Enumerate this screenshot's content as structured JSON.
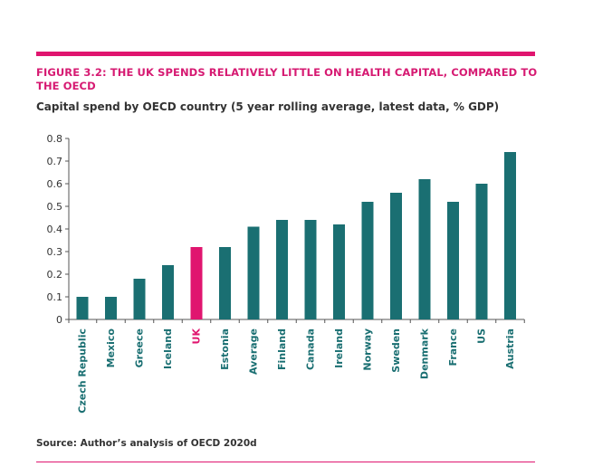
{
  "figure": {
    "title": "FIGURE 3.2: THE UK SPENDS RELATIVELY LITTLE ON HEALTH CAPITAL, COMPARED TO THE OECD",
    "subtitle": "Capital spend by OECD country (5 year rolling average, latest data, % GDP)",
    "source": "Source: Author’s analysis of OECD 2020d"
  },
  "colors": {
    "bar": "#1a6f72",
    "highlight": "#e0156f",
    "accent_rule": "#e0156f",
    "title": "#d61a72"
  },
  "chart_data": {
    "type": "bar",
    "categories": [
      "Czech Republic",
      "Mexico",
      "Greece",
      "Iceland",
      "UK",
      "Estonia",
      "Average",
      "Finland",
      "Canada",
      "Ireland",
      "Norway",
      "Sweden",
      "Denmark",
      "France",
      "US",
      "Austria"
    ],
    "values": [
      0.1,
      0.1,
      0.18,
      0.24,
      0.32,
      0.32,
      0.41,
      0.44,
      0.44,
      0.42,
      0.52,
      0.56,
      0.62,
      0.52,
      0.6,
      0.74
    ],
    "highlight": "UK",
    "title": "Capital spend by OECD country (5 year rolling average, latest data, % GDP)",
    "xlabel": "",
    "ylabel": "",
    "ylim": [
      0,
      0.8
    ],
    "yticks": [
      0,
      0.1,
      0.2,
      0.3,
      0.4,
      0.5,
      0.6,
      0.7,
      0.8
    ],
    "ytick_labels": [
      "0",
      "0.1",
      "0.2",
      "0.3",
      "0.4",
      "0.5",
      "0.6",
      "0.7",
      "0.8"
    ],
    "grid": false,
    "legend": "none"
  }
}
